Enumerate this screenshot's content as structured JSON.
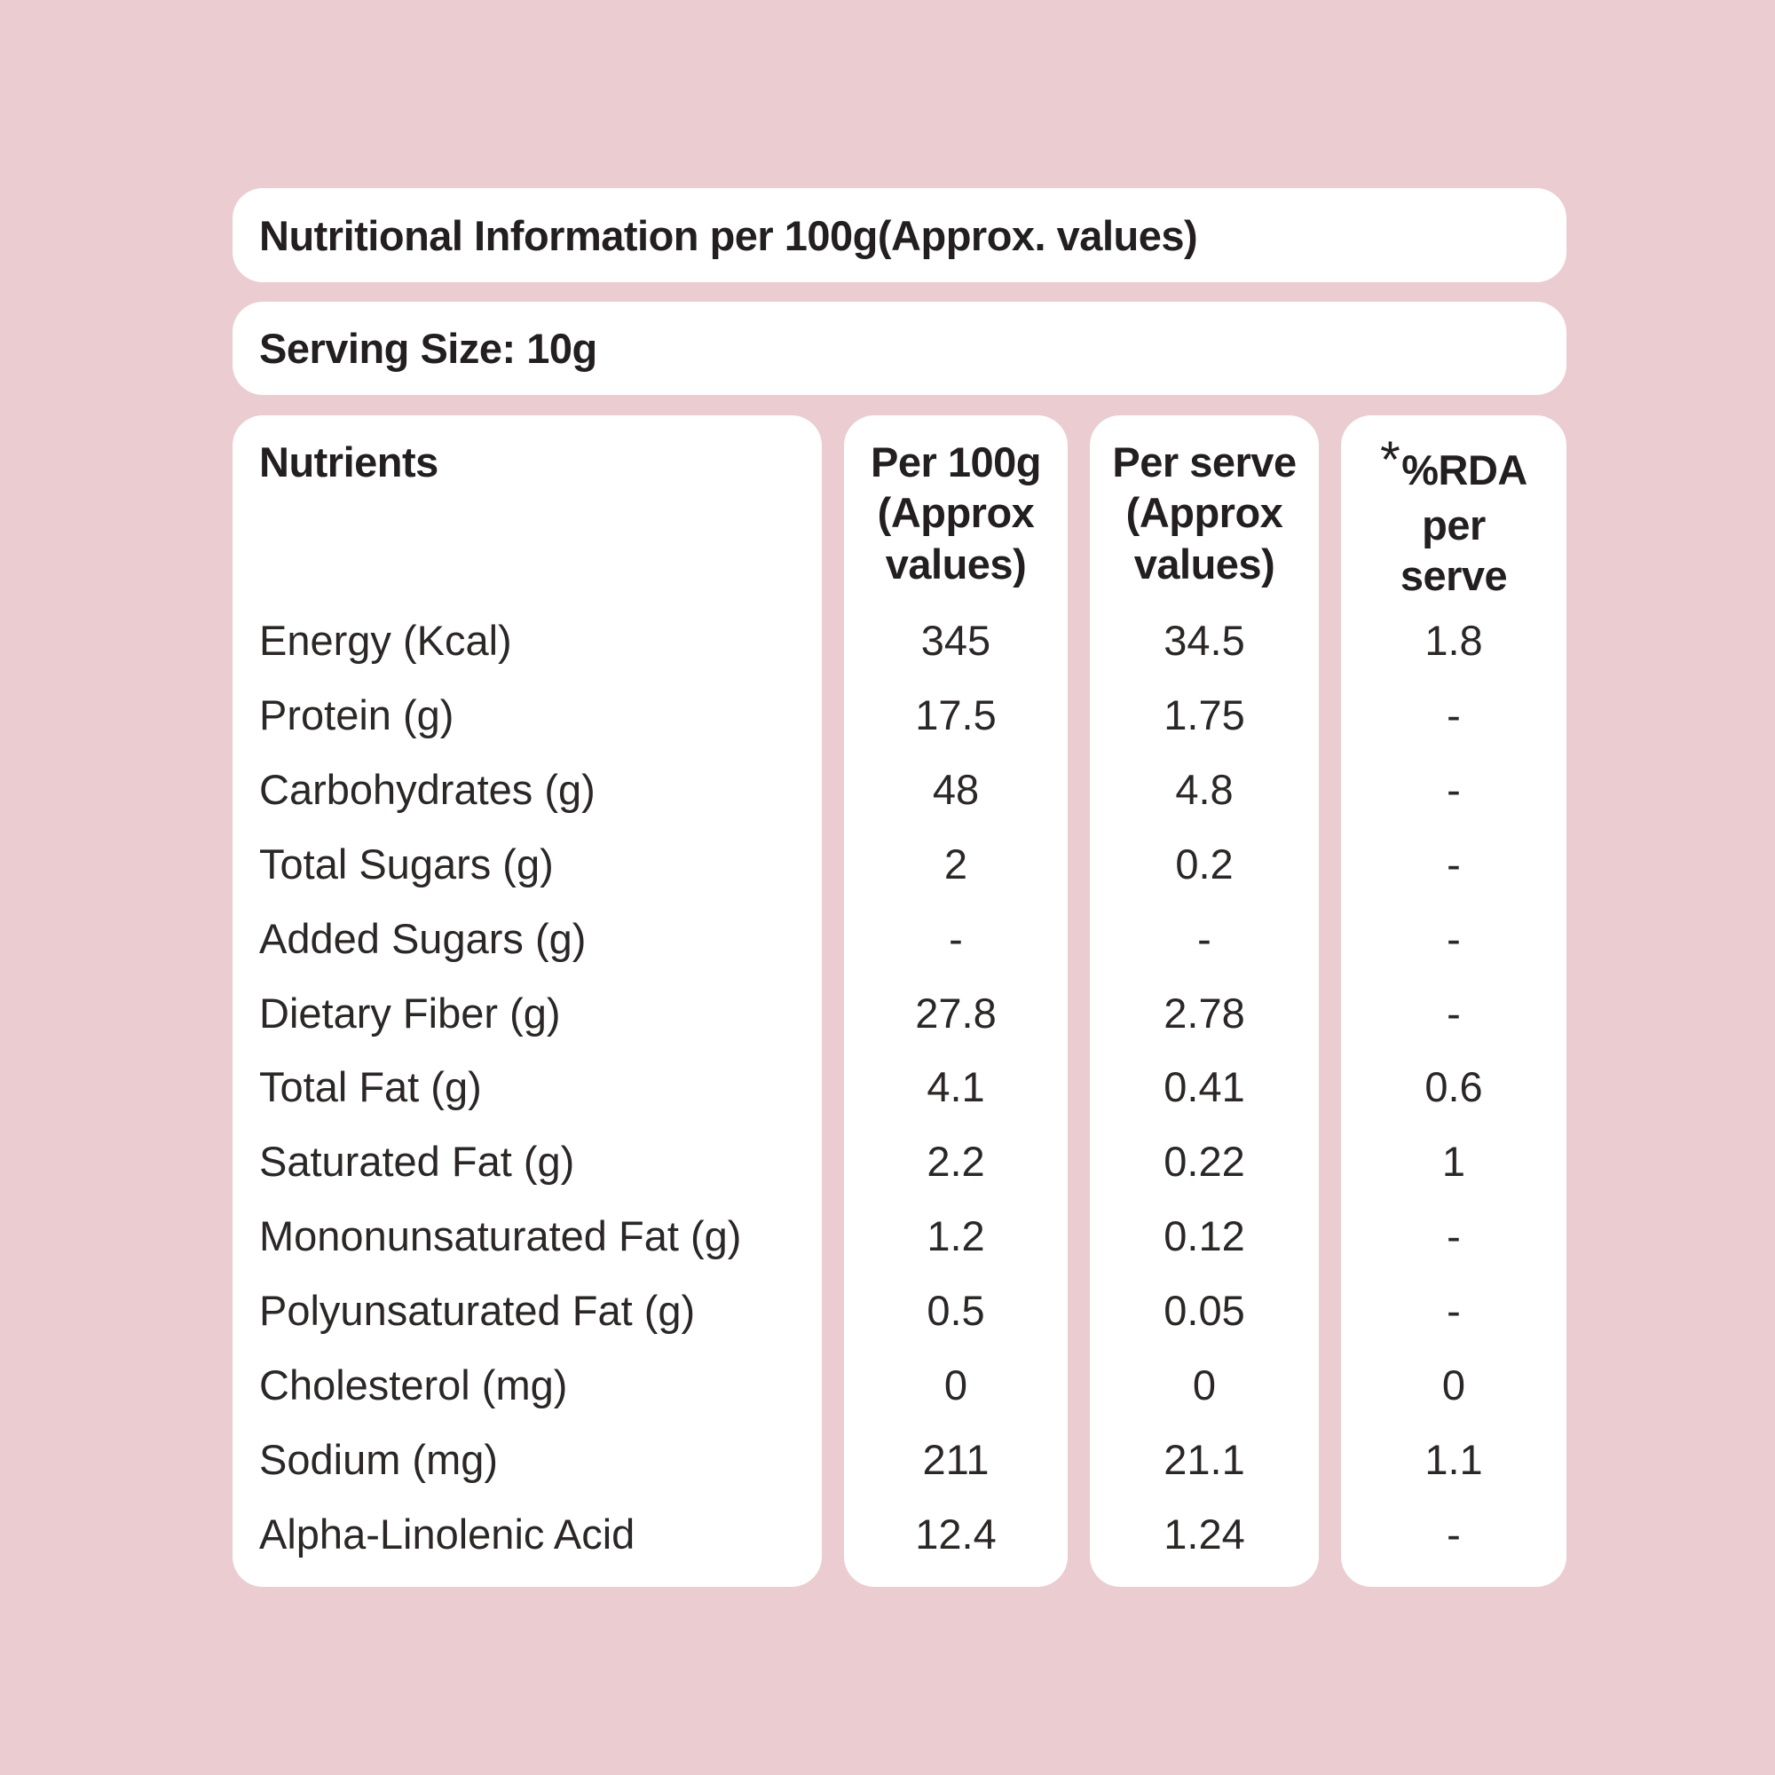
{
  "header": {
    "title": "Nutritional Information per 100g(Approx. values)",
    "serving_size": "Serving Size: 10g"
  },
  "table": {
    "columns": {
      "nutrients": "Nutrients",
      "per_100g": "Per 100g\n(Approx\nvalues)",
      "per_serve": "Per serve\n(Approx\nvalues)",
      "rda_asterisk": "*",
      "rda": "%RDA\nper\nserve"
    },
    "rows": [
      {
        "nutrient": "Energy (Kcal)",
        "per_100g": "345",
        "per_serve": "34.5",
        "rda": "1.8"
      },
      {
        "nutrient": "Protein (g)",
        "per_100g": "17.5",
        "per_serve": "1.75",
        "rda": "-"
      },
      {
        "nutrient": "Carbohydrates (g)",
        "per_100g": "48",
        "per_serve": "4.8",
        "rda": "-"
      },
      {
        "nutrient": "Total Sugars (g)",
        "per_100g": "2",
        "per_serve": "0.2",
        "rda": "-"
      },
      {
        "nutrient": "Added Sugars (g)",
        "per_100g": "-",
        "per_serve": "-",
        "rda": "-"
      },
      {
        "nutrient": "Dietary Fiber (g)",
        "per_100g": "27.8",
        "per_serve": "2.78",
        "rda": "-"
      },
      {
        "nutrient": "Total Fat (g)",
        "per_100g": "4.1",
        "per_serve": "0.41",
        "rda": "0.6"
      },
      {
        "nutrient": "Saturated Fat (g)",
        "per_100g": "2.2",
        "per_serve": "0.22",
        "rda": "1"
      },
      {
        "nutrient": "Mononunsaturated Fat (g)",
        "per_100g": "1.2",
        "per_serve": "0.12",
        "rda": "-"
      },
      {
        "nutrient": "Polyunsaturated Fat (g)",
        "per_100g": "0.5",
        "per_serve": "0.05",
        "rda": "-"
      },
      {
        "nutrient": "Cholesterol (mg)",
        "per_100g": "0",
        "per_serve": "0",
        "rda": "0"
      },
      {
        "nutrient": "Sodium (mg)",
        "per_100g": "211",
        "per_serve": "21.1",
        "rda": "1.1"
      },
      {
        "nutrient": "Alpha-Linolenic Acid",
        "per_100g": "12.4",
        "per_serve": "1.24",
        "rda": "-"
      }
    ]
  },
  "colors": {
    "background": "#eaccd1",
    "card": "#ffffff",
    "text": "#231f20"
  }
}
